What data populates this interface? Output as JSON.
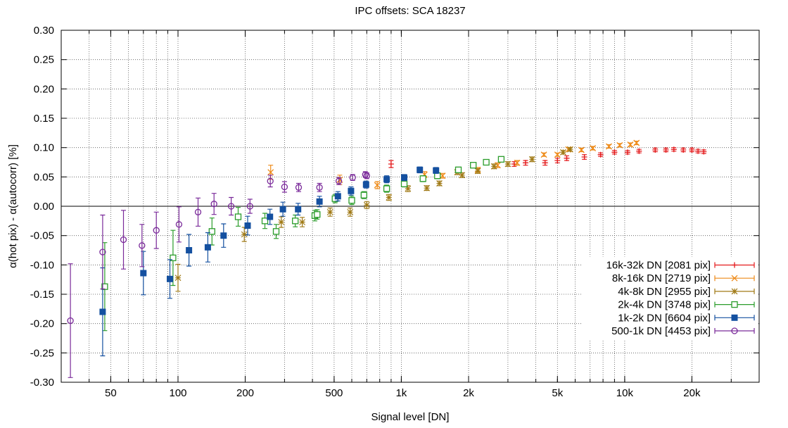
{
  "chart_data": {
    "type": "scatter",
    "title": "IPC offsets: SCA 18237",
    "xlabel": "Signal level [DN]",
    "ylabel": "α(hot pix) - α(autocorr) [%]",
    "x_scale": "log",
    "xlim": [
      30,
      40000
    ],
    "ylim": [
      -0.3,
      0.3
    ],
    "x_ticks": [
      {
        "value": 50,
        "label": "50"
      },
      {
        "value": 100,
        "label": "100"
      },
      {
        "value": 200,
        "label": "200"
      },
      {
        "value": 500,
        "label": "500"
      },
      {
        "value": 1000,
        "label": "1k"
      },
      {
        "value": 2000,
        "label": "2k"
      },
      {
        "value": 5000,
        "label": "5k"
      },
      {
        "value": 10000,
        "label": "10k"
      },
      {
        "value": 20000,
        "label": "20k"
      }
    ],
    "y_ticks": [
      {
        "value": 0.3,
        "label": "0.30"
      },
      {
        "value": 0.25,
        "label": "0.25"
      },
      {
        "value": 0.2,
        "label": "0.20"
      },
      {
        "value": 0.15,
        "label": "0.15"
      },
      {
        "value": 0.1,
        "label": "0.10"
      },
      {
        "value": 0.05,
        "label": "0.05"
      },
      {
        "value": 0.0,
        "label": "0.00"
      },
      {
        "value": -0.05,
        "label": "-0.05"
      },
      {
        "value": -0.1,
        "label": "-0.10"
      },
      {
        "value": -0.15,
        "label": "-0.15"
      },
      {
        "value": -0.2,
        "label": "-0.20"
      },
      {
        "value": -0.25,
        "label": "-0.25"
      },
      {
        "value": -0.3,
        "label": "-0.30"
      }
    ],
    "grid": true,
    "zero_line": true,
    "legend_position": "bottom-right",
    "series": [
      {
        "name": "16k-32k DN [2081 pix]",
        "color": "#e41a1c",
        "marker": "plus",
        "points": [
          [
            900,
            0.072,
            0.006
          ],
          [
            3200,
            0.072,
            0.004
          ],
          [
            3600,
            0.074,
            0.004
          ],
          [
            4400,
            0.074,
            0.004
          ],
          [
            5000,
            0.078,
            0.004
          ],
          [
            5500,
            0.082,
            0.004
          ],
          [
            6600,
            0.084,
            0.004
          ],
          [
            7800,
            0.088,
            0.003
          ],
          [
            9000,
            0.092,
            0.003
          ],
          [
            10300,
            0.092,
            0.003
          ],
          [
            11600,
            0.094,
            0.003
          ],
          [
            13700,
            0.096,
            0.003
          ],
          [
            15300,
            0.096,
            0.003
          ],
          [
            16600,
            0.097,
            0.003
          ],
          [
            18300,
            0.096,
            0.003
          ],
          [
            20000,
            0.096,
            0.003
          ],
          [
            21300,
            0.094,
            0.003
          ],
          [
            22600,
            0.093,
            0.003
          ]
        ]
      },
      {
        "name": "8k-16k DN [2719 pix]",
        "color": "#ee8a18",
        "marker": "cross",
        "points": [
          [
            260,
            0.058,
            0.012
          ],
          [
            530,
            0.045,
            0.008
          ],
          [
            780,
            0.036,
            0.006
          ],
          [
            1270,
            0.054,
            0.005
          ],
          [
            1530,
            0.052,
            0.004
          ],
          [
            2200,
            0.062,
            0.004
          ],
          [
            2700,
            0.07,
            0.004
          ],
          [
            3300,
            0.074,
            0.004
          ],
          [
            4350,
            0.088,
            0.003
          ],
          [
            5000,
            0.088,
            0.003
          ],
          [
            5600,
            0.097,
            0.003
          ],
          [
            6400,
            0.096,
            0.003
          ],
          [
            7200,
            0.099,
            0.003
          ],
          [
            8500,
            0.102,
            0.003
          ],
          [
            9500,
            0.104,
            0.003
          ],
          [
            10600,
            0.105,
            0.003
          ],
          [
            11300,
            0.108,
            0.003
          ]
        ]
      },
      {
        "name": "4k-8k DN [2955 pix]",
        "color": "#a07a16",
        "marker": "star",
        "points": [
          [
            100,
            -0.122,
            0.023
          ],
          [
            198,
            -0.048,
            0.012
          ],
          [
            290,
            -0.027,
            0.009
          ],
          [
            360,
            -0.027,
            0.008
          ],
          [
            480,
            -0.01,
            0.007
          ],
          [
            590,
            -0.01,
            0.007
          ],
          [
            700,
            0.002,
            0.006
          ],
          [
            880,
            0.015,
            0.005
          ],
          [
            1070,
            0.03,
            0.005
          ],
          [
            1300,
            0.031,
            0.004
          ],
          [
            1480,
            0.039,
            0.004
          ],
          [
            1780,
            0.058,
            0.004
          ],
          [
            1870,
            0.053,
            0.004
          ],
          [
            2200,
            0.06,
            0.004
          ],
          [
            2600,
            0.068,
            0.004
          ],
          [
            3000,
            0.072,
            0.004
          ],
          [
            3850,
            0.08,
            0.004
          ],
          [
            5300,
            0.092,
            0.003
          ],
          [
            5700,
            0.097,
            0.003
          ]
        ]
      },
      {
        "name": "2k-4k DN [3748 pix]",
        "color": "#2a9c2a",
        "marker": "square-open",
        "points": [
          [
            47,
            -0.137,
            0.075
          ],
          [
            95,
            -0.088,
            0.047
          ],
          [
            142,
            -0.043,
            0.023
          ],
          [
            186,
            -0.018,
            0.016
          ],
          [
            245,
            -0.025,
            0.013
          ],
          [
            275,
            -0.043,
            0.012
          ],
          [
            335,
            -0.025,
            0.01
          ],
          [
            410,
            -0.016,
            0.009
          ],
          [
            420,
            -0.014,
            0.008
          ],
          [
            505,
            0.013,
            0.007
          ],
          [
            600,
            0.01,
            0.007
          ],
          [
            680,
            0.019,
            0.006
          ],
          [
            860,
            0.03,
            0.006
          ],
          [
            1030,
            0.038,
            0.005
          ],
          [
            1250,
            0.047,
            0.005
          ],
          [
            1450,
            0.052,
            0.005
          ],
          [
            1800,
            0.062,
            0.004
          ],
          [
            2100,
            0.07,
            0.004
          ],
          [
            2400,
            0.075,
            0.004
          ],
          [
            2800,
            0.08,
            0.004
          ]
        ]
      },
      {
        "name": "1k-2k DN [6604 pix]",
        "color": "#1450a0",
        "marker": "square-filled",
        "points": [
          [
            46,
            -0.18,
            0.075
          ],
          [
            70,
            -0.114,
            0.037
          ],
          [
            92,
            -0.124,
            0.033
          ],
          [
            112,
            -0.075,
            0.027
          ],
          [
            136,
            -0.07,
            0.025
          ],
          [
            160,
            -0.05,
            0.02
          ],
          [
            205,
            -0.033,
            0.016
          ],
          [
            258,
            -0.018,
            0.013
          ],
          [
            295,
            -0.005,
            0.012
          ],
          [
            345,
            -0.005,
            0.01
          ],
          [
            430,
            0.008,
            0.009
          ],
          [
            520,
            0.017,
            0.008
          ],
          [
            595,
            0.026,
            0.007
          ],
          [
            695,
            0.037,
            0.006
          ],
          [
            860,
            0.046,
            0.006
          ],
          [
            1030,
            0.049,
            0.005
          ],
          [
            1210,
            0.062,
            0.005
          ],
          [
            1430,
            0.061,
            0.005
          ]
        ]
      },
      {
        "name": "500-1k DN [4453 pix]",
        "color": "#7a2a9a",
        "marker": "circle-open",
        "points": [
          [
            33,
            -0.195,
            0.097
          ],
          [
            46,
            -0.078,
            0.063
          ],
          [
            57,
            -0.057,
            0.05
          ],
          [
            69,
            -0.067,
            0.036
          ],
          [
            80,
            -0.041,
            0.031
          ],
          [
            101,
            -0.031,
            0.03
          ],
          [
            123,
            -0.01,
            0.024
          ],
          [
            145,
            0.004,
            0.018
          ],
          [
            173,
            0.0,
            0.015
          ],
          [
            210,
            0.0,
            0.012
          ],
          [
            259,
            0.043,
            0.01
          ],
          [
            300,
            0.033,
            0.009
          ],
          [
            347,
            0.032,
            0.007
          ],
          [
            430,
            0.032,
            0.007
          ],
          [
            525,
            0.043,
            0.006
          ],
          [
            605,
            0.049,
            0.005
          ],
          [
            690,
            0.054,
            0.005
          ],
          [
            700,
            0.052,
            0.005
          ]
        ]
      }
    ]
  }
}
